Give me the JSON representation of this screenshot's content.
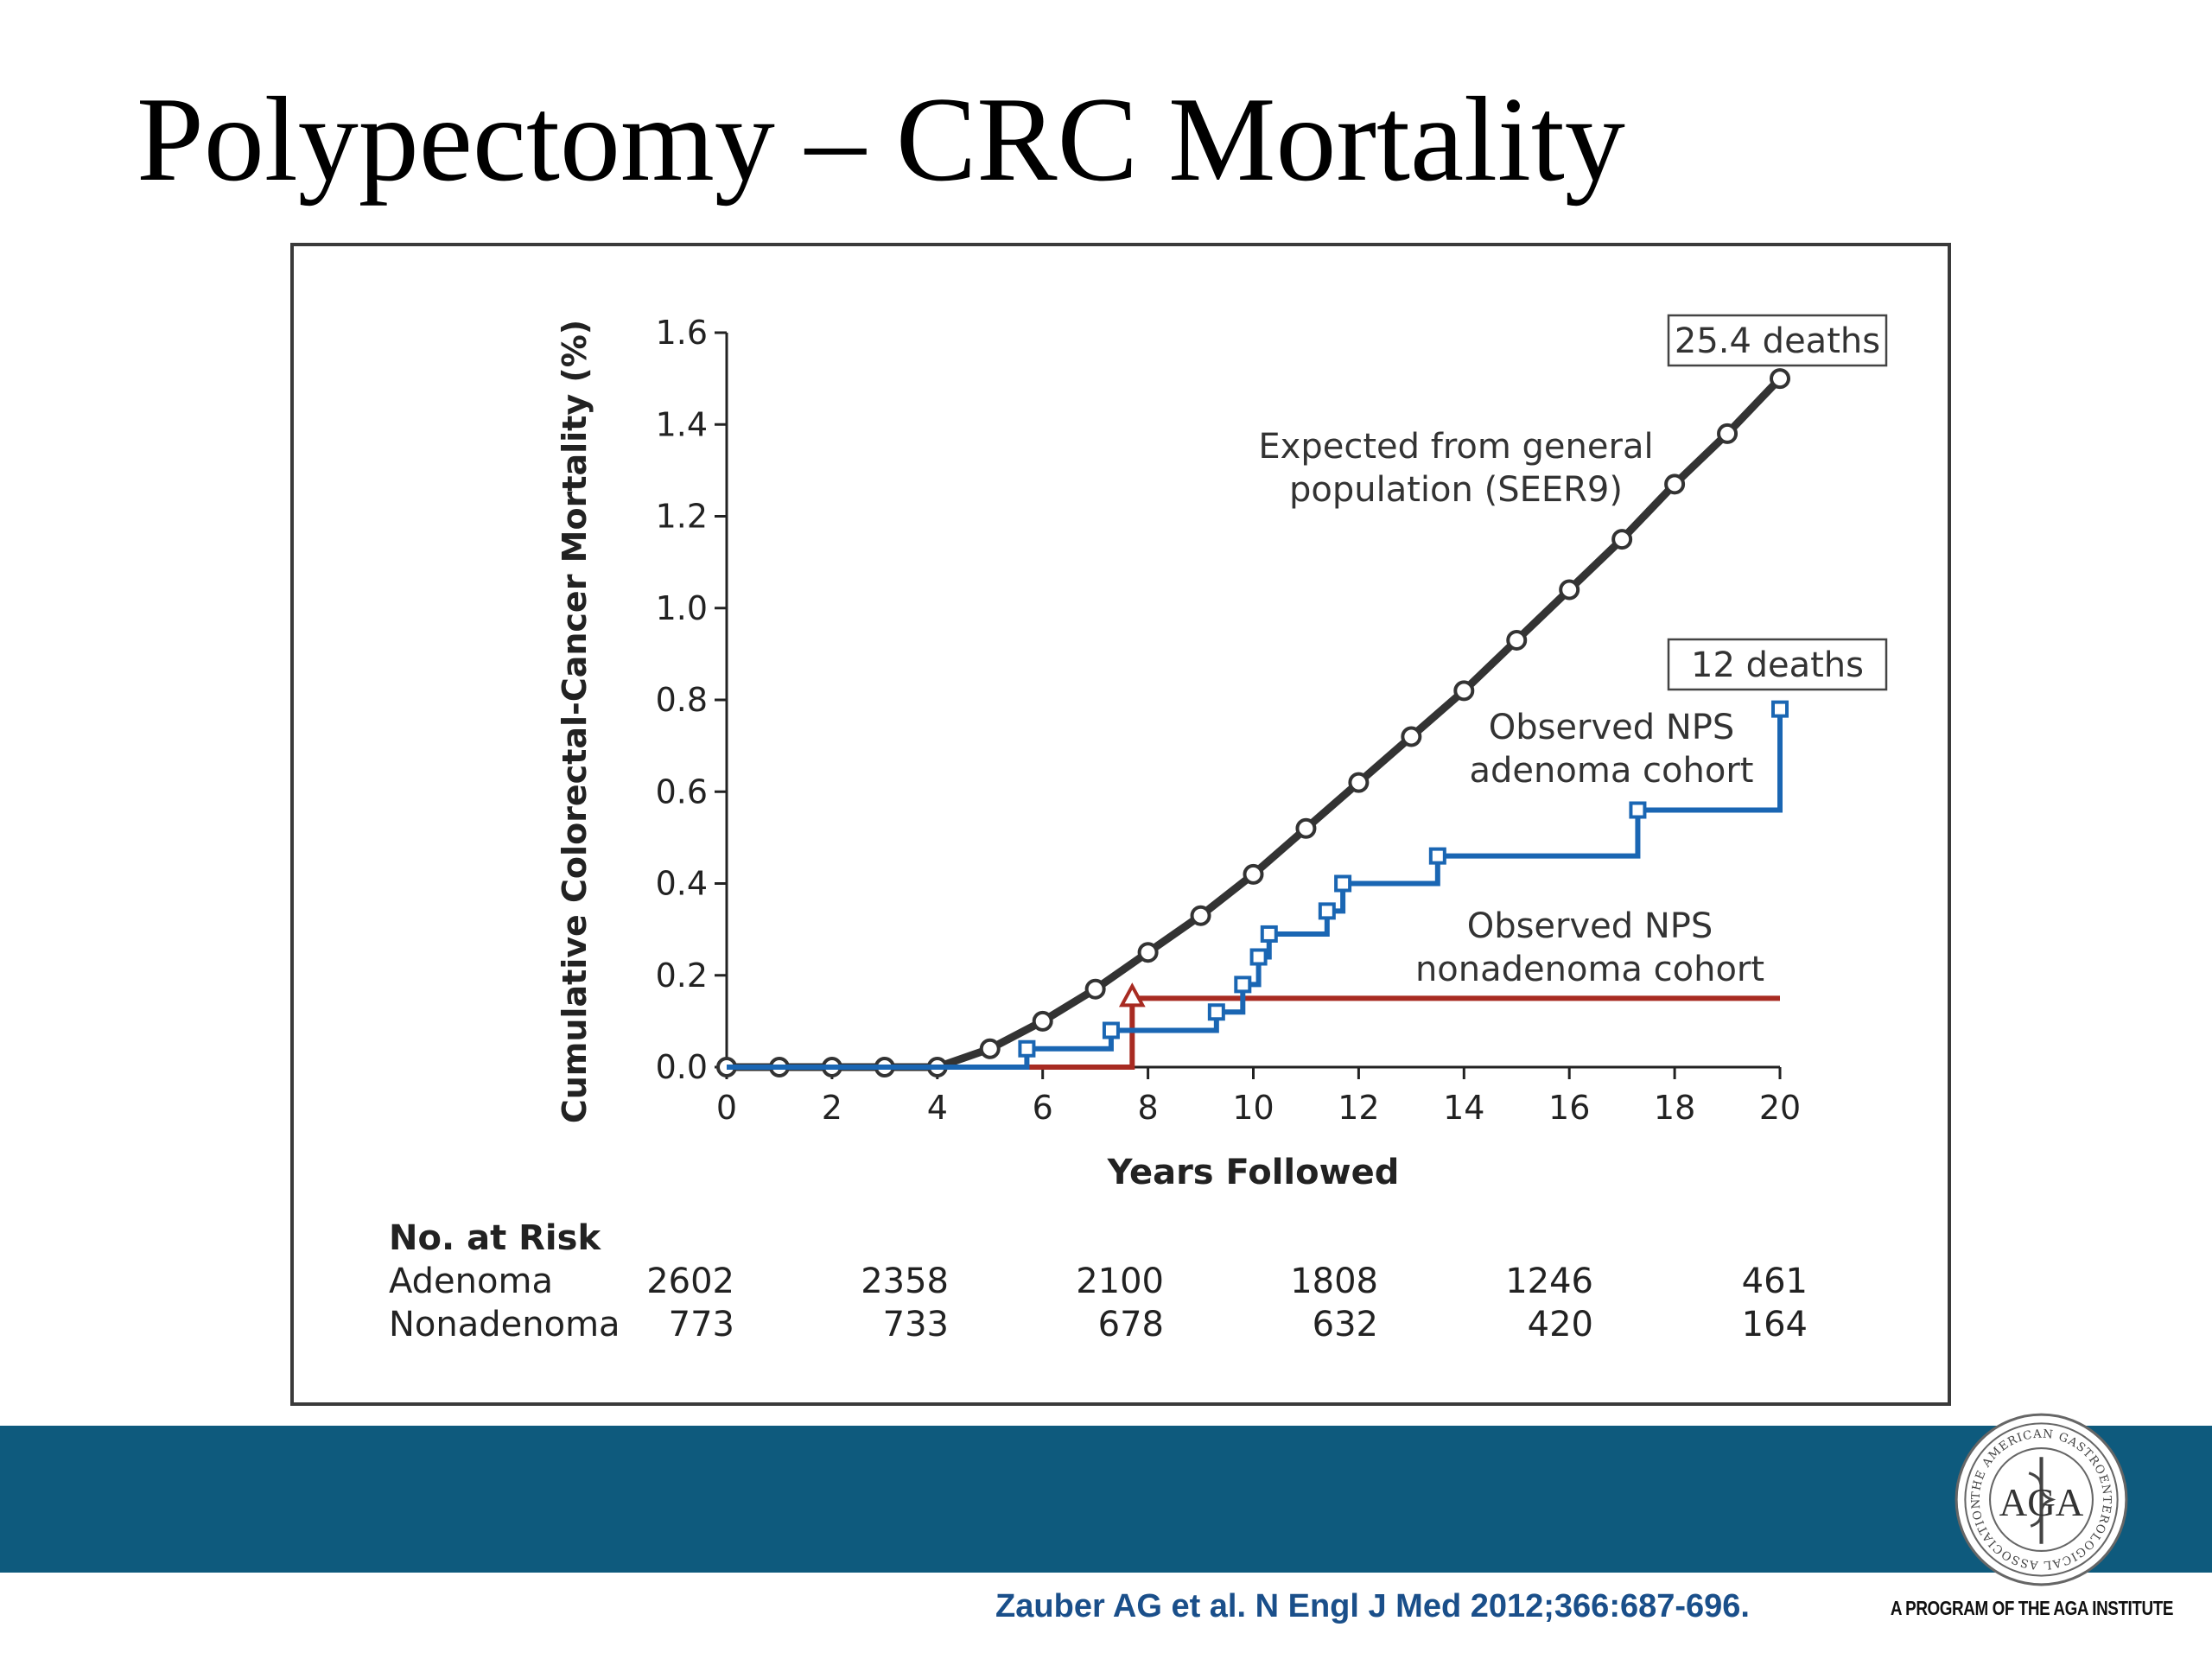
{
  "slide": {
    "title": "Polypectomy – CRC Mortality",
    "citation": "Zauber AG et al. N Engl J Med 2012;366:687-696.",
    "logo_text": "AGA",
    "logo_ring_text": "THE AMERICAN GASTROENTEROLOGICAL ASSOCIATION",
    "tagline": "A PROGRAM OF THE AGA INSTITUTE",
    "band_color": "#0e5a7d"
  },
  "chart_data": {
    "type": "line",
    "title": "",
    "xlabel": "Years Followed",
    "ylabel": "Cumulative Colorectal-Cancer Mortality (%)",
    "xlim": [
      0,
      20
    ],
    "ylim": [
      0,
      1.6
    ],
    "xticks": [
      0,
      2,
      4,
      6,
      8,
      10,
      12,
      14,
      16,
      18,
      20
    ],
    "yticks": [
      0.0,
      0.2,
      0.4,
      0.6,
      0.8,
      1.0,
      1.2,
      1.4,
      1.6
    ],
    "ytick_labels": [
      "0.0",
      "0.2",
      "0.4",
      "0.6",
      "0.8",
      "1.0",
      "1.2",
      "1.4",
      "1.6"
    ],
    "grid": false,
    "series": [
      {
        "name": "Expected from general population (SEER9)",
        "label_lines": [
          "Expected from general",
          "population (SEER9)"
        ],
        "color": "#333333",
        "marker": "circle",
        "step": false,
        "end_label": "25.4 deaths",
        "x": [
          0,
          1,
          2,
          3,
          4,
          5,
          6,
          7,
          8,
          9,
          10,
          11,
          12,
          13,
          14,
          15,
          16,
          17,
          18,
          19,
          20
        ],
        "y": [
          0.0,
          0.0,
          0.0,
          0.0,
          0.0,
          0.04,
          0.1,
          0.17,
          0.25,
          0.33,
          0.42,
          0.52,
          0.62,
          0.72,
          0.82,
          0.93,
          1.04,
          1.15,
          1.27,
          1.38,
          1.5
        ]
      },
      {
        "name": "Observed NPS adenoma cohort",
        "label_lines": [
          "Observed NPS",
          "adenoma cohort"
        ],
        "color": "#1a66b3",
        "marker": "square",
        "step": true,
        "end_label": "12 deaths",
        "x": [
          0,
          5.7,
          7.3,
          9.3,
          9.8,
          10.1,
          10.3,
          11.4,
          11.7,
          13.5,
          17.3,
          20
        ],
        "y": [
          0.0,
          0.04,
          0.08,
          0.12,
          0.18,
          0.24,
          0.29,
          0.34,
          0.4,
          0.46,
          0.56,
          0.78
        ]
      },
      {
        "name": "Observed NPS nonadenoma cohort",
        "label_lines": [
          "Observed NPS",
          "nonadenoma cohort"
        ],
        "color": "#a82b22",
        "marker": "triangle",
        "step": true,
        "x": [
          0,
          7.7,
          20
        ],
        "y": [
          0.0,
          0.15,
          0.15
        ]
      }
    ],
    "risk_table": {
      "heading": "No. at Risk",
      "years": [
        0,
        4,
        8,
        12,
        16,
        20
      ],
      "rows": [
        {
          "label": "Adenoma",
          "values": [
            "2602",
            "2358",
            "2100",
            "1808",
            "1246",
            "461"
          ]
        },
        {
          "label": "Nonadenoma",
          "values": [
            "773",
            "733",
            "678",
            "632",
            "420",
            "164"
          ]
        }
      ]
    }
  }
}
